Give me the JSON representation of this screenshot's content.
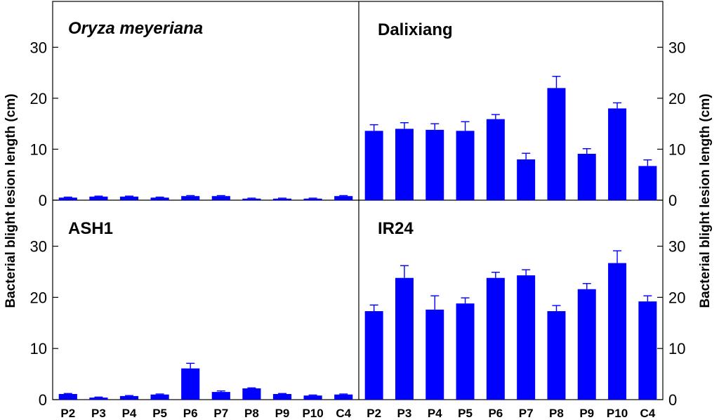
{
  "chart_data": {
    "type": "bar",
    "ylabel_left": "Bacterial blight lesion length (cm)",
    "ylabel_right": "Bacterial blight lesion length (cm)",
    "categories": [
      "P2",
      "P3",
      "P4",
      "P5",
      "P6",
      "P7",
      "P8",
      "P9",
      "P10",
      "C4"
    ],
    "ylim": [
      0,
      39
    ],
    "yticks": [
      0,
      10,
      20,
      30
    ],
    "bar_color": "#0000ff",
    "grid": false,
    "panels": [
      {
        "title": "Oryza meyeriana",
        "title_style": "italic",
        "position": "top-left",
        "values": [
          0.5,
          0.7,
          0.7,
          0.5,
          0.8,
          0.8,
          0.3,
          0.3,
          0.3,
          0.8
        ],
        "errors": [
          0.1,
          0.1,
          0.1,
          0.1,
          0.1,
          0.1,
          0.1,
          0.1,
          0.1,
          0.1
        ]
      },
      {
        "title": "Dalixiang",
        "title_style": "normal",
        "position": "top-right",
        "values": [
          13.6,
          14.0,
          13.8,
          13.6,
          15.9,
          8.0,
          22.0,
          9.1,
          18.0,
          6.7
        ],
        "errors": [
          1.2,
          1.2,
          1.2,
          1.8,
          0.9,
          1.2,
          2.3,
          1.0,
          1.1,
          1.2
        ]
      },
      {
        "title": "ASH1",
        "title_style": "normal",
        "position": "bottom-left",
        "values": [
          1.1,
          0.4,
          0.7,
          1.0,
          6.1,
          1.5,
          2.2,
          1.1,
          0.8,
          1.0
        ],
        "errors": [
          0.1,
          0.1,
          0.1,
          0.1,
          1.0,
          0.2,
          0.1,
          0.1,
          0.1,
          0.1
        ]
      },
      {
        "title": "IR24",
        "title_style": "normal",
        "position": "bottom-right",
        "values": [
          17.3,
          23.8,
          17.6,
          18.8,
          23.8,
          24.3,
          17.3,
          21.6,
          26.7,
          19.2
        ],
        "errors": [
          1.2,
          2.4,
          2.7,
          1.1,
          1.1,
          1.1,
          1.1,
          1.1,
          2.4,
          1.1
        ]
      }
    ]
  }
}
